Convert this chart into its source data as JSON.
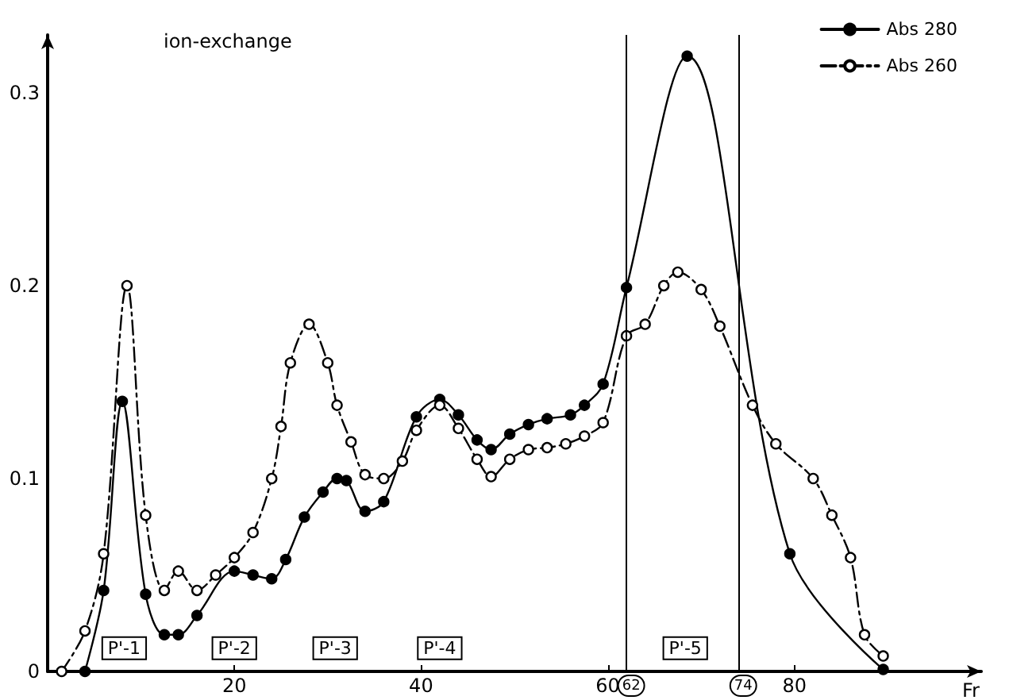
{
  "chart_data": {
    "type": "line",
    "title": "ion-exchange",
    "xlabel": "Fr",
    "xlim": [
      0,
      100
    ],
    "xticks": [
      20,
      40,
      60,
      80
    ],
    "ylim": [
      0,
      0.33
    ],
    "yticks": [
      0,
      0.1,
      0.2,
      0.3
    ],
    "grid": false,
    "legend": "top right",
    "marker": "circle",
    "series": [
      {
        "name": "Abs 280",
        "color": "#000000",
        "line_style": "solid",
        "x": [
          4,
          6,
          8,
          10.5,
          12.5,
          14,
          16,
          20,
          22,
          24,
          25.5,
          27.5,
          29.5,
          31,
          32,
          34,
          36,
          39.5,
          42,
          44,
          46,
          47.5,
          49.5,
          51.5,
          53.5,
          56,
          57.5,
          59.5,
          62,
          68.5,
          79.5,
          89.5
        ],
        "values": [
          0,
          0.042,
          0.14,
          0.04,
          0.019,
          0.019,
          0.029,
          0.052,
          0.05,
          0.048,
          0.058,
          0.08,
          0.093,
          0.1,
          0.099,
          0.083,
          0.088,
          0.132,
          0.141,
          0.133,
          0.12,
          0.115,
          0.123,
          0.128,
          0.131,
          0.133,
          0.138,
          0.149,
          0.199,
          0.319,
          0.061,
          0.001
        ]
      },
      {
        "name": "Abs 260",
        "color": "#000000",
        "line_style": "dashed",
        "x": [
          1.5,
          4,
          6,
          8.5,
          10.5,
          12.5,
          14,
          16,
          18,
          20,
          22,
          24,
          25,
          26,
          28,
          30,
          31,
          32.5,
          34,
          36,
          38,
          39.5,
          42,
          44,
          46,
          47.5,
          49.5,
          51.5,
          53.5,
          55.5,
          57.5,
          59.5,
          62,
          64,
          66,
          67.5,
          70,
          72,
          75.5,
          78,
          82,
          84,
          86,
          87.5,
          89.5
        ],
        "values": [
          0,
          0.021,
          0.061,
          0.2,
          0.081,
          0.042,
          0.052,
          0.042,
          0.05,
          0.059,
          0.072,
          0.1,
          0.127,
          0.16,
          0.18,
          0.16,
          0.138,
          0.119,
          0.102,
          0.1,
          0.109,
          0.125,
          0.138,
          0.126,
          0.11,
          0.101,
          0.11,
          0.115,
          0.116,
          0.118,
          0.122,
          0.129,
          0.174,
          0.18,
          0.2,
          0.207,
          0.198,
          0.179,
          0.138,
          0.118,
          0.1,
          0.081,
          0.059,
          0.019,
          0.008
        ]
      }
    ],
    "ref_lines": [
      {
        "axis": "x",
        "value": 62,
        "label": "62"
      },
      {
        "axis": "x",
        "value": 74,
        "label": "74"
      }
    ],
    "annotations": [
      {
        "text": "P'-1",
        "x": 8.2,
        "y": 0.012
      },
      {
        "text": "P'-2",
        "x": 20,
        "y": 0.012
      },
      {
        "text": "P'-3",
        "x": 30.8,
        "y": 0.012
      },
      {
        "text": "P'-4",
        "x": 42,
        "y": 0.012
      },
      {
        "text": "P'-5",
        "x": 68.3,
        "y": 0.012
      }
    ]
  }
}
